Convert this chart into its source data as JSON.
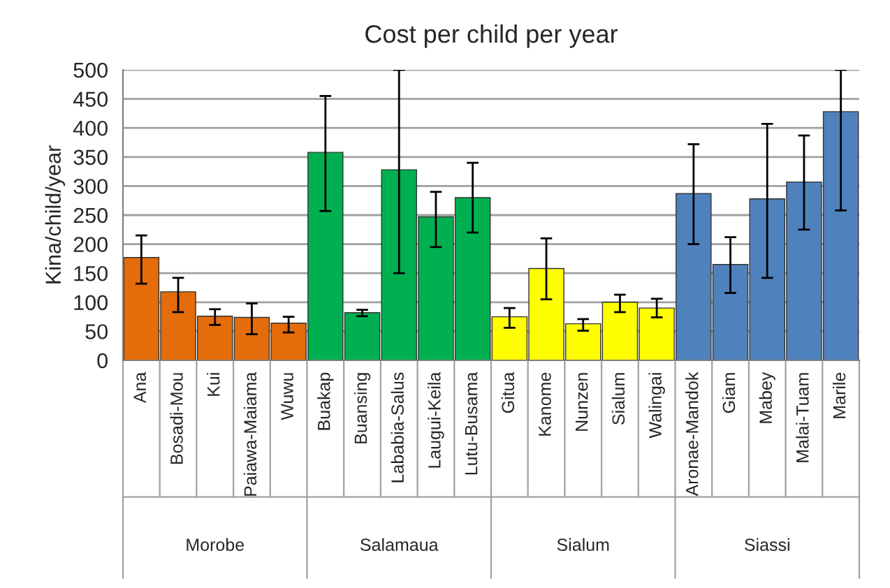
{
  "chart_data": {
    "type": "bar",
    "title": "Cost per child per year",
    "ylabel": "Kina/child/year",
    "categories": [
      "Ana",
      "Bosadi-Mou",
      "Kui",
      "Paiawa-Maiama",
      "Wuwu",
      "Buakap",
      "Buansing",
      "Lababia-Salus",
      "Laugui-Keila",
      "Lutu-Busama",
      "Gitua",
      "Kanome",
      "Nunzen",
      "Sialum",
      "Walingai",
      "Aronae-Mandok",
      "Giam",
      "Mabey",
      "Malai-Tuam",
      "Marile"
    ],
    "values": [
      177,
      118,
      76,
      74,
      64,
      358,
      82,
      328,
      247,
      280,
      75,
      158,
      63,
      100,
      90,
      287,
      165,
      278,
      307,
      428
    ],
    "errors": [
      [
        132,
        215
      ],
      [
        83,
        142
      ],
      [
        61,
        88
      ],
      [
        45,
        98
      ],
      [
        48,
        75
      ],
      [
        257,
        455
      ],
      [
        76,
        87
      ],
      [
        150,
        500
      ],
      [
        195,
        290
      ],
      [
        220,
        340
      ],
      [
        56,
        90
      ],
      [
        105,
        210
      ],
      [
        51,
        71
      ],
      [
        83,
        113
      ],
      [
        74,
        106
      ],
      [
        200,
        372
      ],
      [
        116,
        212
      ],
      [
        142,
        407
      ],
      [
        225,
        387
      ],
      [
        258,
        500
      ]
    ],
    "colors": [
      "#e46c0a",
      "#e46c0a",
      "#e46c0a",
      "#e46c0a",
      "#e46c0a",
      "#00b050",
      "#00b050",
      "#00b050",
      "#00b050",
      "#00b050",
      "#ffff00",
      "#ffff00",
      "#ffff00",
      "#ffff00",
      "#ffff00",
      "#4f81bd",
      "#4f81bd",
      "#4f81bd",
      "#4f81bd",
      "#4f81bd"
    ],
    "annotations": [
      "Morobe",
      "Salamaua",
      "Sialum",
      "Siassi"
    ],
    "ylim": [
      0,
      500
    ],
    "yticks": [
      0,
      50,
      100,
      150,
      200,
      250,
      300,
      350,
      400,
      450,
      500
    ],
    "grid": "y",
    "legend": false
  }
}
